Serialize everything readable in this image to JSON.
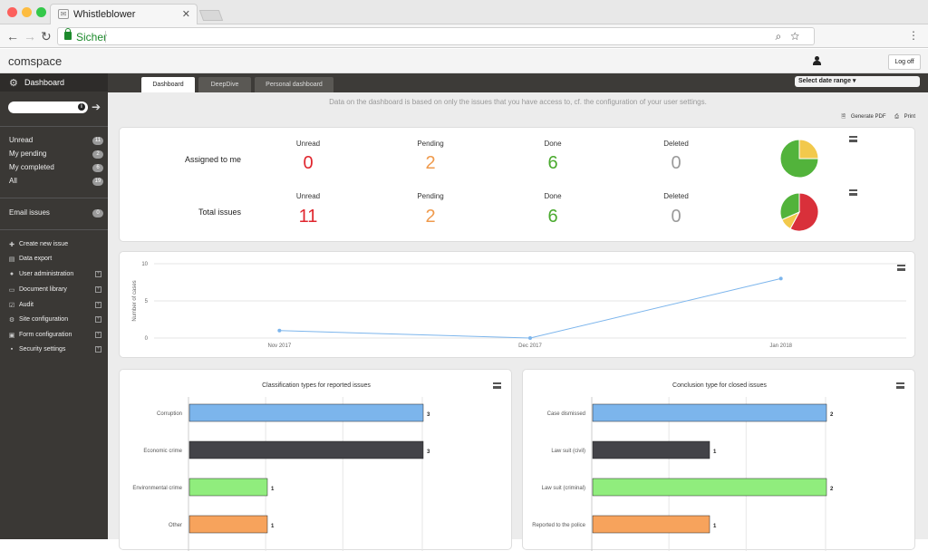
{
  "browser": {
    "tab_title": "Whistleblower",
    "secure_label": "Sicher"
  },
  "app": {
    "brand": "comspace",
    "logoff_label": "Log off"
  },
  "sidebar": {
    "title": "Dashboard",
    "counters": [
      {
        "label": "Unread",
        "count": "11"
      },
      {
        "label": "My pending",
        "count": "2"
      },
      {
        "label": "My completed",
        "count": "6"
      },
      {
        "label": "All",
        "count": "19"
      }
    ],
    "email_issues": {
      "label": "Email issues",
      "count": "0"
    },
    "nav": [
      {
        "label": "Create new issue",
        "icon": "plus-icon"
      },
      {
        "label": "Data export",
        "icon": "file-icon"
      },
      {
        "label": "User administration",
        "icon": "user-icon"
      },
      {
        "label": "Document library",
        "icon": "folder-icon"
      },
      {
        "label": "Audit",
        "icon": "check-icon"
      },
      {
        "label": "Site configuration",
        "icon": "gear-icon"
      },
      {
        "label": "Form configuration",
        "icon": "form-icon"
      },
      {
        "label": "Security settings",
        "icon": "lock-icon"
      }
    ]
  },
  "tabs": [
    {
      "label": "Dashboard",
      "active": true
    },
    {
      "label": "DeepDive",
      "active": false
    },
    {
      "label": "Personal dashboard",
      "active": false
    }
  ],
  "date_range_label": "Select date range",
  "notice": "Data on the dashboard is based on only the issues that you have access to, cf. the configuration of your user settings.",
  "tools": {
    "pdf": "Generate PDF",
    "print": "Print"
  },
  "stats": {
    "colors": {
      "unread": "#e0262e",
      "pending": "#ef9a4c",
      "done": "#4aaa2e",
      "deleted": "#9a9a9a"
    },
    "rows": [
      {
        "label": "Assigned to me",
        "unread_label": "Unread",
        "unread": "0",
        "pending_label": "Pending",
        "pending": "2",
        "done_label": "Done",
        "done": "6",
        "deleted_label": "Deleted",
        "deleted": "0"
      },
      {
        "label": "Total issues",
        "unread_label": "Unread",
        "unread": "11",
        "pending_label": "Pending",
        "pending": "2",
        "done_label": "Done",
        "done": "6",
        "deleted_label": "Deleted",
        "deleted": "0"
      }
    ]
  },
  "chart_data": [
    {
      "type": "pie",
      "values": [
        2,
        6
      ],
      "colors": [
        "#f2c94c",
        "#52b33b"
      ]
    },
    {
      "type": "pie",
      "values": [
        11,
        2,
        6
      ],
      "colors": [
        "#d9303a",
        "#f2c94c",
        "#52b33b"
      ]
    },
    {
      "type": "line",
      "x": [
        "Nov 2017",
        "Dec 2017",
        "Jan 2018"
      ],
      "y": [
        1,
        0,
        8
      ],
      "ylabel": "Number of cases",
      "yticks": [
        0,
        5,
        10
      ],
      "ylim": [
        0,
        10
      ],
      "color": "#7cb5ec"
    },
    {
      "type": "bar",
      "title": "Classification types for reported issues",
      "categories": [
        "Corruption",
        "Economic crime",
        "Environmental crime",
        "Other"
      ],
      "values": [
        3,
        3,
        1,
        1
      ],
      "colors": [
        "#7cb5ec",
        "#434348",
        "#90ed7d",
        "#f7a35c"
      ]
    },
    {
      "type": "bar",
      "title": "Conclusion type for closed issues",
      "categories": [
        "Case dismissed",
        "Law suit (civil)",
        "Law suit (criminal)",
        "Reported to the police"
      ],
      "values": [
        2,
        1,
        2,
        1
      ],
      "colors": [
        "#7cb5ec",
        "#434348",
        "#90ed7d",
        "#f7a35c"
      ]
    }
  ]
}
